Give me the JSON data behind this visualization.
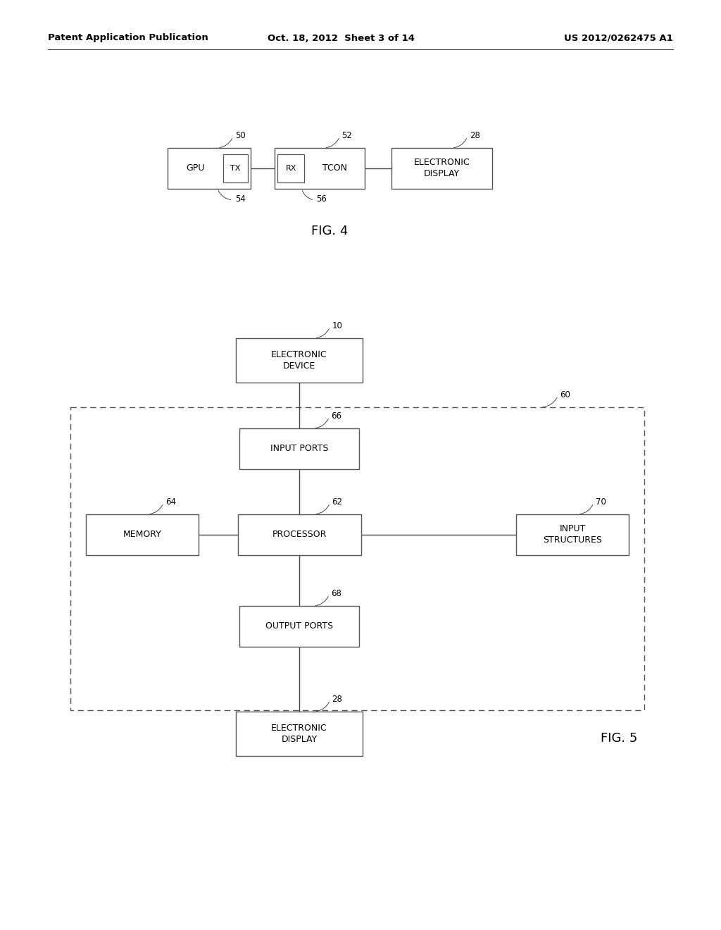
{
  "background_color": "#ffffff",
  "header_left": "Patent Application Publication",
  "header_mid": "Oct. 18, 2012  Sheet 3 of 14",
  "header_right": "US 2012/0262475 A1",
  "fig4_label": "FIG. 4",
  "fig5_label": "FIG. 5"
}
